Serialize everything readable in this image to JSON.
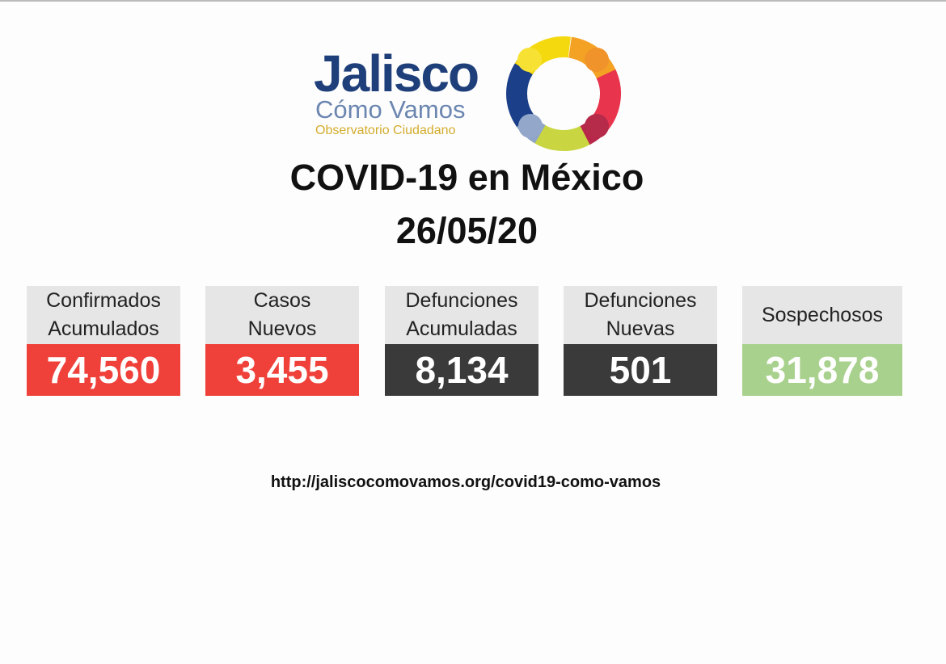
{
  "logo": {
    "name": "Jalisco",
    "subtitle": "Cómo Vamos",
    "tagline": "Observatorio Ciudadano"
  },
  "title": "COVID-19 en México",
  "date": "26/05/20",
  "cards": [
    {
      "label": [
        "Confirmados",
        "Acumulados"
      ],
      "value": "74,560"
    },
    {
      "label": [
        "Casos",
        "Nuevos"
      ],
      "value": "3,455"
    },
    {
      "label": [
        "Defunciones",
        "Acumuladas"
      ],
      "value": "8,134"
    },
    {
      "label": [
        "Defunciones",
        "Nuevas"
      ],
      "value": "501"
    },
    {
      "label": [
        "Sospechosos"
      ],
      "value": "31,878"
    }
  ],
  "url": "http://jaliscocomovamos.org/covid19-como-vamos"
}
